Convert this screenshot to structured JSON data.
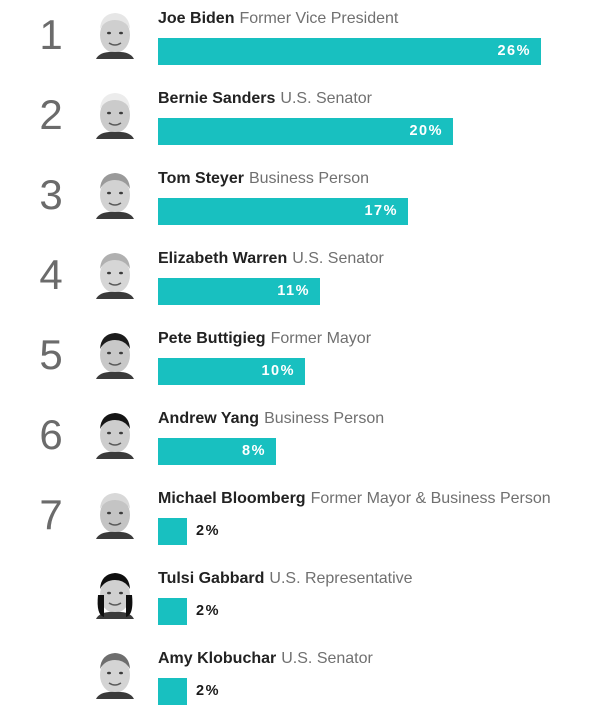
{
  "chart_data": {
    "type": "bar",
    "orientation": "horizontal",
    "bar_color": "#18c0c0",
    "xlim": [
      0,
      26
    ],
    "ranks": [
      "1",
      "2",
      "3",
      "4",
      "5",
      "6",
      "7",
      "",
      ""
    ],
    "categories": [
      "Joe Biden",
      "Bernie Sanders",
      "Tom Steyer",
      "Elizabeth Warren",
      "Pete Buttigieg",
      "Andrew Yang",
      "Michael Bloomberg",
      "Tulsi Gabbard",
      "Amy Klobuchar"
    ],
    "subtitles": [
      "Former Vice President",
      "U.S. Senator",
      "Business Person",
      "U.S. Senator",
      "Former Mayor",
      "Business Person",
      "Former Mayor & Business Person",
      "U.S. Representative",
      "U.S. Senator"
    ],
    "values": [
      26,
      20,
      17,
      11,
      10,
      8,
      2,
      2,
      2
    ],
    "value_labels": [
      "26%",
      "20%",
      "17%",
      "11%",
      "10%",
      "8%",
      "2%",
      "2%",
      "2%"
    ],
    "avatar_icons": [
      "portrait-icon",
      "portrait-icon",
      "portrait-icon",
      "portrait-icon",
      "portrait-icon",
      "portrait-icon",
      "portrait-icon",
      "portrait-icon",
      "portrait-icon"
    ]
  }
}
